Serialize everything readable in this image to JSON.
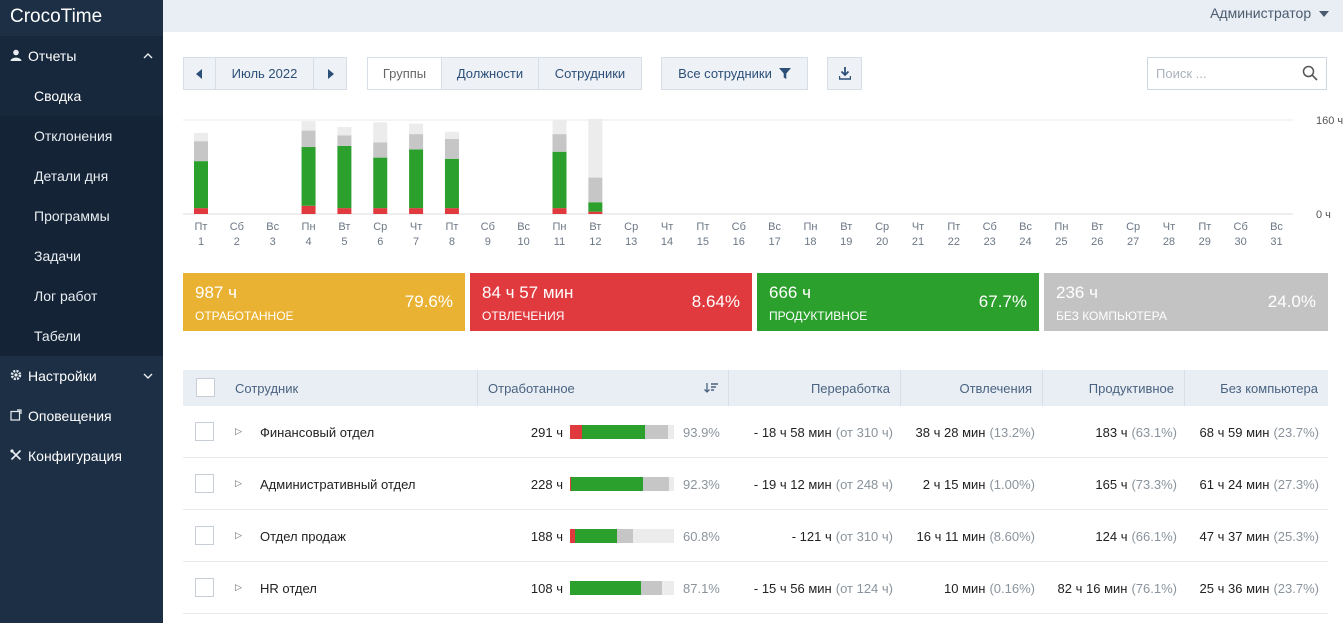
{
  "app": {
    "title": "CrocoTime"
  },
  "sidebar": {
    "groups": [
      {
        "label": "Отчеты",
        "icon": "user-icon",
        "expanded": true,
        "items": [
          {
            "label": "Сводка",
            "active": true
          },
          {
            "label": "Отклонения"
          },
          {
            "label": "Детали дня"
          },
          {
            "label": "Программы"
          },
          {
            "label": "Задачи"
          },
          {
            "label": "Лог работ"
          },
          {
            "label": "Табели"
          }
        ]
      },
      {
        "label": "Настройки",
        "icon": "gear-icon",
        "expanded": false
      },
      {
        "label": "Оповещения",
        "icon": "notification-icon"
      },
      {
        "label": "Конфигурация",
        "icon": "tools-icon"
      }
    ]
  },
  "topbar": {
    "user": "Администратор"
  },
  "toolbar": {
    "month": "Июль 2022",
    "tabs": [
      "Группы",
      "Должности",
      "Сотрудники"
    ],
    "active_tab": "Группы",
    "filter": "Все сотрудники",
    "search_placeholder": "Поиск ..."
  },
  "chart_data": {
    "type": "bar",
    "stacked": true,
    "unit": "ч",
    "ylim": [
      0,
      160
    ],
    "y_tick_labels": [
      "160 ч",
      "0 ч"
    ],
    "categories": [
      "1",
      "2",
      "3",
      "4",
      "5",
      "6",
      "7",
      "8",
      "9",
      "10",
      "11",
      "12",
      "13",
      "14",
      "15",
      "16",
      "17",
      "18",
      "19",
      "20",
      "21",
      "22",
      "23",
      "24",
      "25",
      "26",
      "27",
      "28",
      "29",
      "30",
      "31"
    ],
    "weekdays": [
      "Пт",
      "Сб",
      "Вс",
      "Пн",
      "Вт",
      "Ср",
      "Чт",
      "Пт",
      "Сб",
      "Вс",
      "Пн",
      "Вт",
      "Ср",
      "Чт",
      "Пт",
      "Сб",
      "Вс",
      "Пн",
      "Вт",
      "Ср",
      "Чт",
      "Пт",
      "Сб",
      "Вс",
      "Пн",
      "Вт",
      "Ср",
      "Чт",
      "Пт",
      "Сб",
      "Вс"
    ],
    "series": [
      {
        "color": "#e03a3e",
        "values": [
          10,
          0,
          0,
          14,
          10,
          10,
          10,
          10,
          0,
          0,
          10,
          4,
          0,
          0,
          0,
          0,
          0,
          0,
          0,
          0,
          0,
          0,
          0,
          0,
          0,
          0,
          0,
          0,
          0,
          0,
          0
        ]
      },
      {
        "color": "#2ca02c",
        "values": [
          80,
          0,
          0,
          100,
          106,
          86,
          100,
          84,
          0,
          0,
          96,
          16,
          0,
          0,
          0,
          0,
          0,
          0,
          0,
          0,
          0,
          0,
          0,
          0,
          0,
          0,
          0,
          0,
          0,
          0,
          0
        ]
      },
      {
        "color": "#c6c6c6",
        "values": [
          34,
          0,
          0,
          28,
          18,
          26,
          26,
          34,
          0,
          0,
          30,
          42,
          0,
          0,
          0,
          0,
          0,
          0,
          0,
          0,
          0,
          0,
          0,
          0,
          0,
          0,
          0,
          0,
          0,
          0,
          0
        ]
      },
      {
        "color": "#ececec",
        "values": [
          14,
          0,
          0,
          16,
          14,
          34,
          18,
          12,
          0,
          0,
          24,
          100,
          0,
          0,
          0,
          0,
          0,
          0,
          0,
          0,
          0,
          0,
          0,
          0,
          0,
          0,
          0,
          0,
          0,
          0,
          0
        ]
      }
    ]
  },
  "stats": [
    {
      "value": "987 ч",
      "caption": "ОТРАБОТАННОЕ",
      "percent": "79.6%",
      "color": "#eab232"
    },
    {
      "value": "84 ч 57 мин",
      "caption": "ОТВЛЕЧЕНИЯ",
      "percent": "8.64%",
      "color": "#e03a3e"
    },
    {
      "value": "666 ч",
      "caption": "ПРОДУКТИВНОЕ",
      "percent": "67.7%",
      "color": "#2ca02c"
    },
    {
      "value": "236 ч",
      "caption": "БЕЗ КОМПЬЮТЕРА",
      "percent": "24.0%",
      "color": "#c3c3c3"
    }
  ],
  "table": {
    "columns": [
      "Сотрудник",
      "Отработанное",
      "Переработка",
      "Отвлечения",
      "Продуктивное",
      "Без компьютера"
    ],
    "rows": [
      {
        "name": "Финансовый отдел",
        "worked": "291 ч",
        "bar": [
          0.12,
          0.6,
          0.22
        ],
        "worked_pct": "93.9%",
        "overtime": "- 18 ч 58 мин",
        "overtime_note": "(от 310 ч)",
        "distractions": "38 ч 28 мин",
        "distractions_pct": "(13.2%)",
        "productive": "183 ч",
        "productive_pct": "(63.1%)",
        "offline": "68 ч 59 мин",
        "offline_pct": "(23.7%)"
      },
      {
        "name": "Административный отдел",
        "worked": "228 ч",
        "bar": [
          0.01,
          0.69,
          0.25
        ],
        "worked_pct": "92.3%",
        "overtime": "- 19 ч 12 мин",
        "overtime_note": "(от 248 ч)",
        "distractions": "2 ч 15 мин",
        "distractions_pct": "(1.00%)",
        "productive": "165 ч",
        "productive_pct": "(73.3%)",
        "offline": "61 ч 24 мин",
        "offline_pct": "(27.3%)"
      },
      {
        "name": "Отдел продаж",
        "worked": "188 ч",
        "bar": [
          0.05,
          0.4,
          0.16
        ],
        "worked_pct": "60.8%",
        "overtime": "- 121 ч",
        "overtime_note": "(от 310 ч)",
        "distractions": "16 ч 11 мин",
        "distractions_pct": "(8.60%)",
        "productive": "124 ч",
        "productive_pct": "(66.1%)",
        "offline": "47 ч 37 мин",
        "offline_pct": "(25.3%)"
      },
      {
        "name": "HR отдел",
        "worked": "108 ч",
        "bar": [
          0.0,
          0.68,
          0.2
        ],
        "worked_pct": "87.1%",
        "overtime": "- 15 ч 56 мин",
        "overtime_note": "(от 124 ч)",
        "distractions": "10 мин",
        "distractions_pct": "(0.16%)",
        "productive": "82 ч 16 мин",
        "productive_pct": "(76.1%)",
        "offline": "25 ч 36 мин",
        "offline_pct": "(23.7%)"
      }
    ]
  }
}
